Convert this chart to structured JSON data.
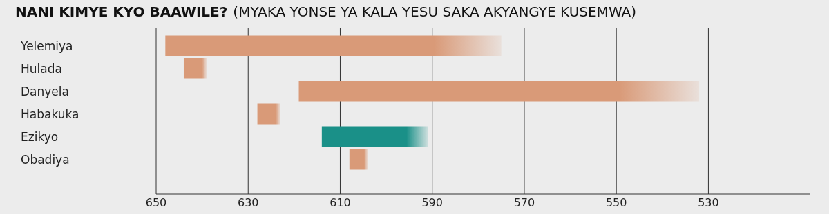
{
  "chart_data": {
    "type": "bar",
    "orientation": "horizontal",
    "title": "NANI KIMYE KYO BAAWILE?",
    "subtitle": "(MYAKA YONSE YA KALA YESU SAKA AKYANGYE KUSEMWA)",
    "categories": [
      "Yelemiya",
      "Hulada",
      "Danyela",
      "Habakuka",
      "Ezikyo",
      "Obadiya"
    ],
    "base": [
      648,
      644,
      619,
      628,
      614,
      608
    ],
    "values": [
      -73,
      -5,
      -87,
      -5,
      -23,
      -4
    ],
    "colors": [
      "#d99a78",
      "#d99a78",
      "#d99a78",
      "#d99a78",
      "#1a9088",
      "#d99a78"
    ],
    "xlim": [
      650,
      508
    ],
    "xticks": [
      650,
      630,
      610,
      590,
      570,
      550,
      530
    ],
    "grid": "x"
  }
}
